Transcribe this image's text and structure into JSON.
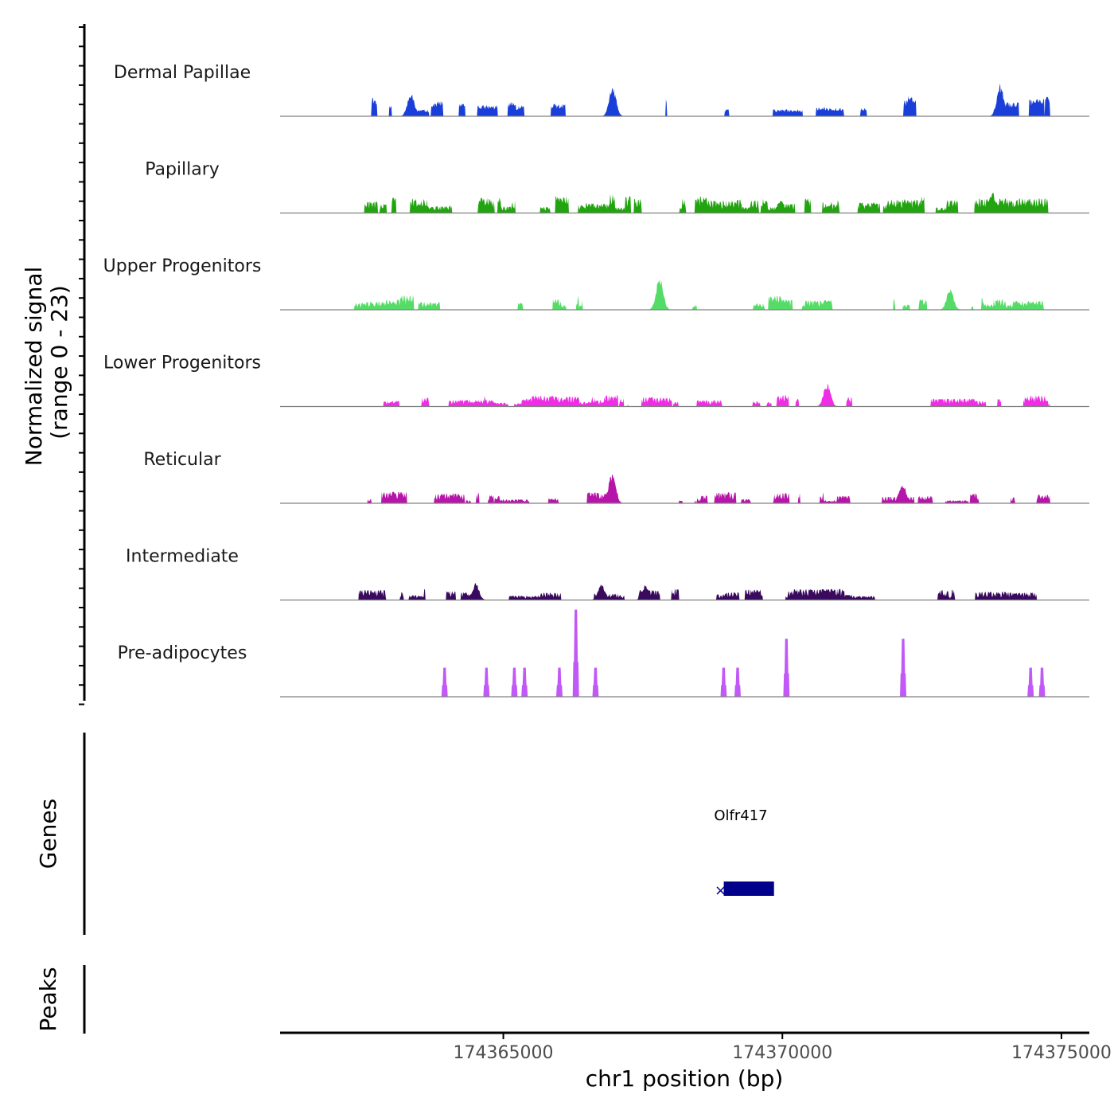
{
  "chart_data": {
    "type": "area",
    "chromosome": "chr1",
    "x_range": [
      174361000,
      175000000
    ],
    "x_range_view": [
      174361000,
      174375500
    ],
    "y_range": [
      0,
      23
    ],
    "xlabel": "chr1 position (bp)",
    "ylabel_line1": "Normalized signal",
    "ylabel_line2": "(range 0 - 23)",
    "x_ticks": [
      174365000,
      174370000,
      174375000
    ],
    "x_tick_labels": [
      "174365000",
      "174370000",
      "174375000"
    ],
    "genes_label": "Genes",
    "peaks_label": "Peaks",
    "tracks": [
      {
        "name": "Dermal Papillae",
        "color": "#1a3fd9",
        "style": "sparse",
        "seed": 11,
        "amp": 0.22,
        "coverage": 0.28,
        "spikes": [
          [
            174363350,
            0.26
          ],
          [
            174366960,
            0.32
          ],
          [
            174373900,
            0.34
          ]
        ]
      },
      {
        "name": "Papillary",
        "color": "#22a410",
        "style": "dense",
        "seed": 23,
        "amp": 0.2,
        "coverage": 0.7,
        "spikes": [
          [
            174373750,
            0.23
          ],
          [
            174369970,
            0.14
          ]
        ]
      },
      {
        "name": "Upper Progenitors",
        "color": "#55dc66",
        "style": "dense",
        "seed": 37,
        "amp": 0.15,
        "coverage": 0.52,
        "spikes": [
          [
            174367800,
            0.36
          ],
          [
            174373000,
            0.22
          ]
        ]
      },
      {
        "name": "Lower Progenitors",
        "color": "#ef2de4",
        "style": "dense",
        "seed": 51,
        "amp": 0.12,
        "coverage": 0.55,
        "spikes": [
          [
            174370800,
            0.25
          ]
        ]
      },
      {
        "name": "Reticular",
        "color": "#b715a9",
        "style": "dense",
        "seed": 67,
        "amp": 0.12,
        "coverage": 0.5,
        "spikes": [
          [
            174366950,
            0.33
          ],
          [
            174372150,
            0.22
          ]
        ]
      },
      {
        "name": "Intermediate",
        "color": "#3a0a5e",
        "style": "dense",
        "seed": 79,
        "amp": 0.12,
        "coverage": 0.52,
        "spikes": [
          [
            174364500,
            0.18
          ],
          [
            174366750,
            0.17
          ],
          [
            174367550,
            0.16
          ]
        ]
      },
      {
        "name": "Pre-adipocytes",
        "color": "#c159f6",
        "style": "peaks",
        "seed": 97,
        "amp": 0.3,
        "coverage": 0.0,
        "peaks": [
          [
            174363950,
            0.3
          ],
          [
            174364700,
            0.3
          ],
          [
            174365200,
            0.3
          ],
          [
            174365380,
            0.3
          ],
          [
            174366000,
            0.3
          ],
          [
            174366300,
            0.9
          ],
          [
            174366650,
            0.3
          ],
          [
            174368950,
            0.3
          ],
          [
            174369200,
            0.3
          ],
          [
            174370070,
            0.6
          ],
          [
            174372160,
            0.6
          ],
          [
            174374450,
            0.3
          ],
          [
            174374650,
            0.3
          ]
        ]
      }
    ],
    "gene": {
      "name": "Olfr417",
      "start": 174368950,
      "end": 174369850,
      "strand": "-",
      "color": "#00008b"
    }
  }
}
